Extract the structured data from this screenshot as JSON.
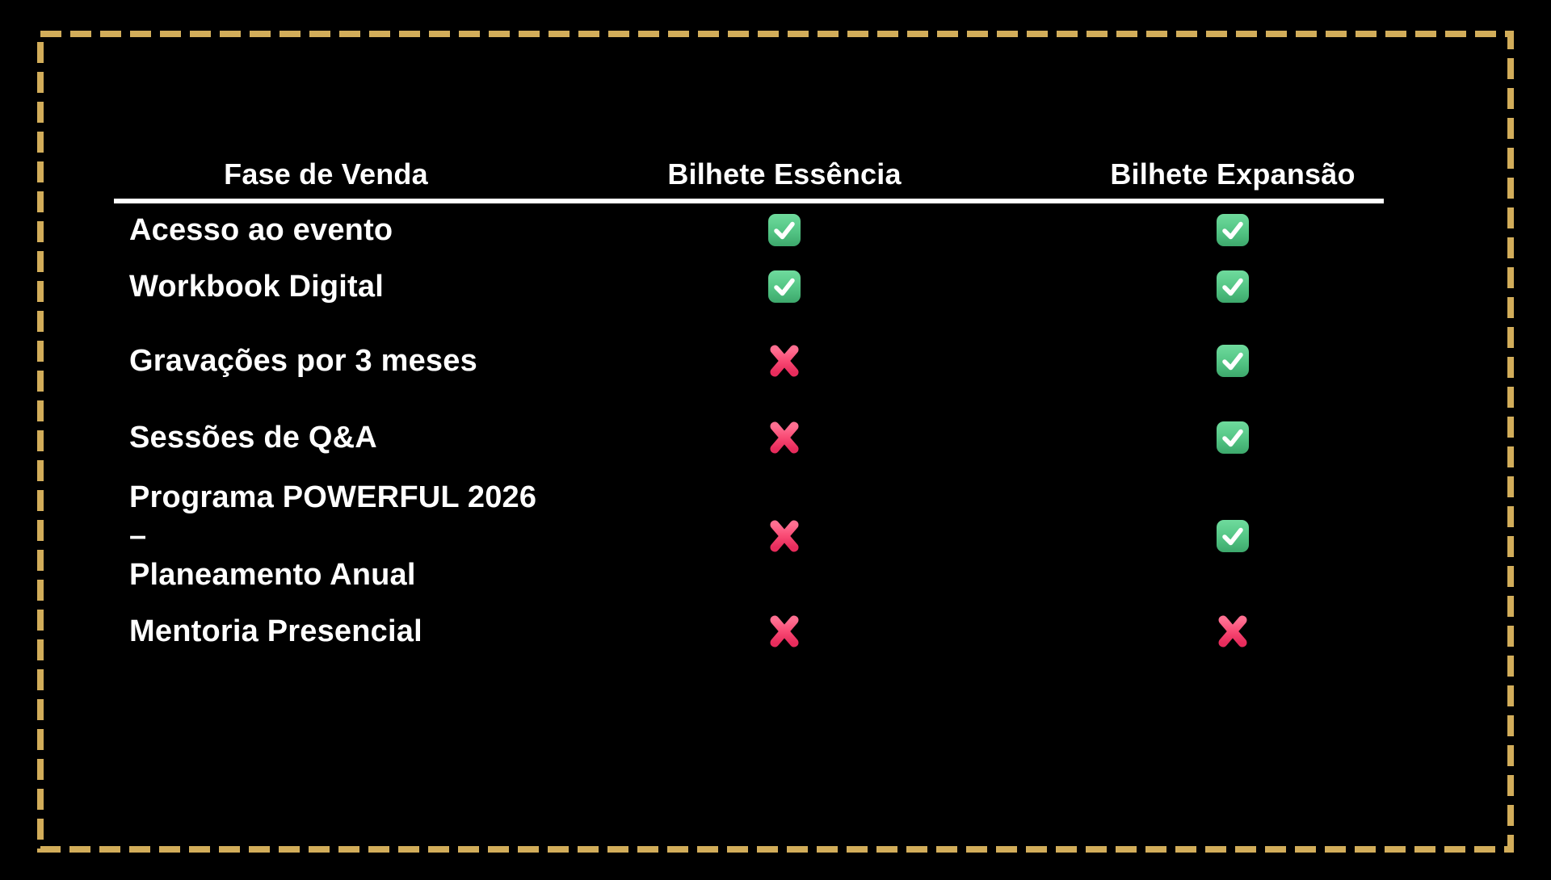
{
  "slide": {
    "type": "comparison-table-slide",
    "background_color": "#000000",
    "border_style": "dashed"
  },
  "table": {
    "columns": [
      {
        "id": "feature",
        "label": "Fase de Venda"
      },
      {
        "id": "essencia",
        "label": "Bilhete Essência"
      },
      {
        "id": "expansao",
        "label": "Bilhete Expansão"
      }
    ],
    "rows": [
      {
        "feature": "Acesso ao evento",
        "essencia": true,
        "expansao": true
      },
      {
        "feature": "Workbook Digital",
        "essencia": true,
        "expansao": true
      },
      {
        "feature": "Gravações por 3 meses",
        "essencia": false,
        "expansao": true
      },
      {
        "feature": "Sessões de Q&A",
        "essencia": false,
        "expansao": true
      },
      {
        "feature": "Programa POWERFUL 2026 –\nPlaneamento Anual",
        "essencia": false,
        "expansao": true
      },
      {
        "feature": "Mentoria Presencial",
        "essencia": false,
        "expansao": false
      }
    ],
    "icons": {
      "included": "check-icon",
      "excluded": "cross-icon"
    }
  },
  "colors": {
    "background": "#000000",
    "text": "#ffffff",
    "divider": "#ffffff",
    "border_gold": "#d2ad5a",
    "check_green": "#52c482",
    "check_green_light": "#6fdb9d",
    "check_green_dark": "#3da86c",
    "check_mark_white": "#ffffff",
    "cross_pink": "#f94a74",
    "cross_pink_light": "#ff6f91",
    "cross_pink_dark": "#e72c5c"
  }
}
